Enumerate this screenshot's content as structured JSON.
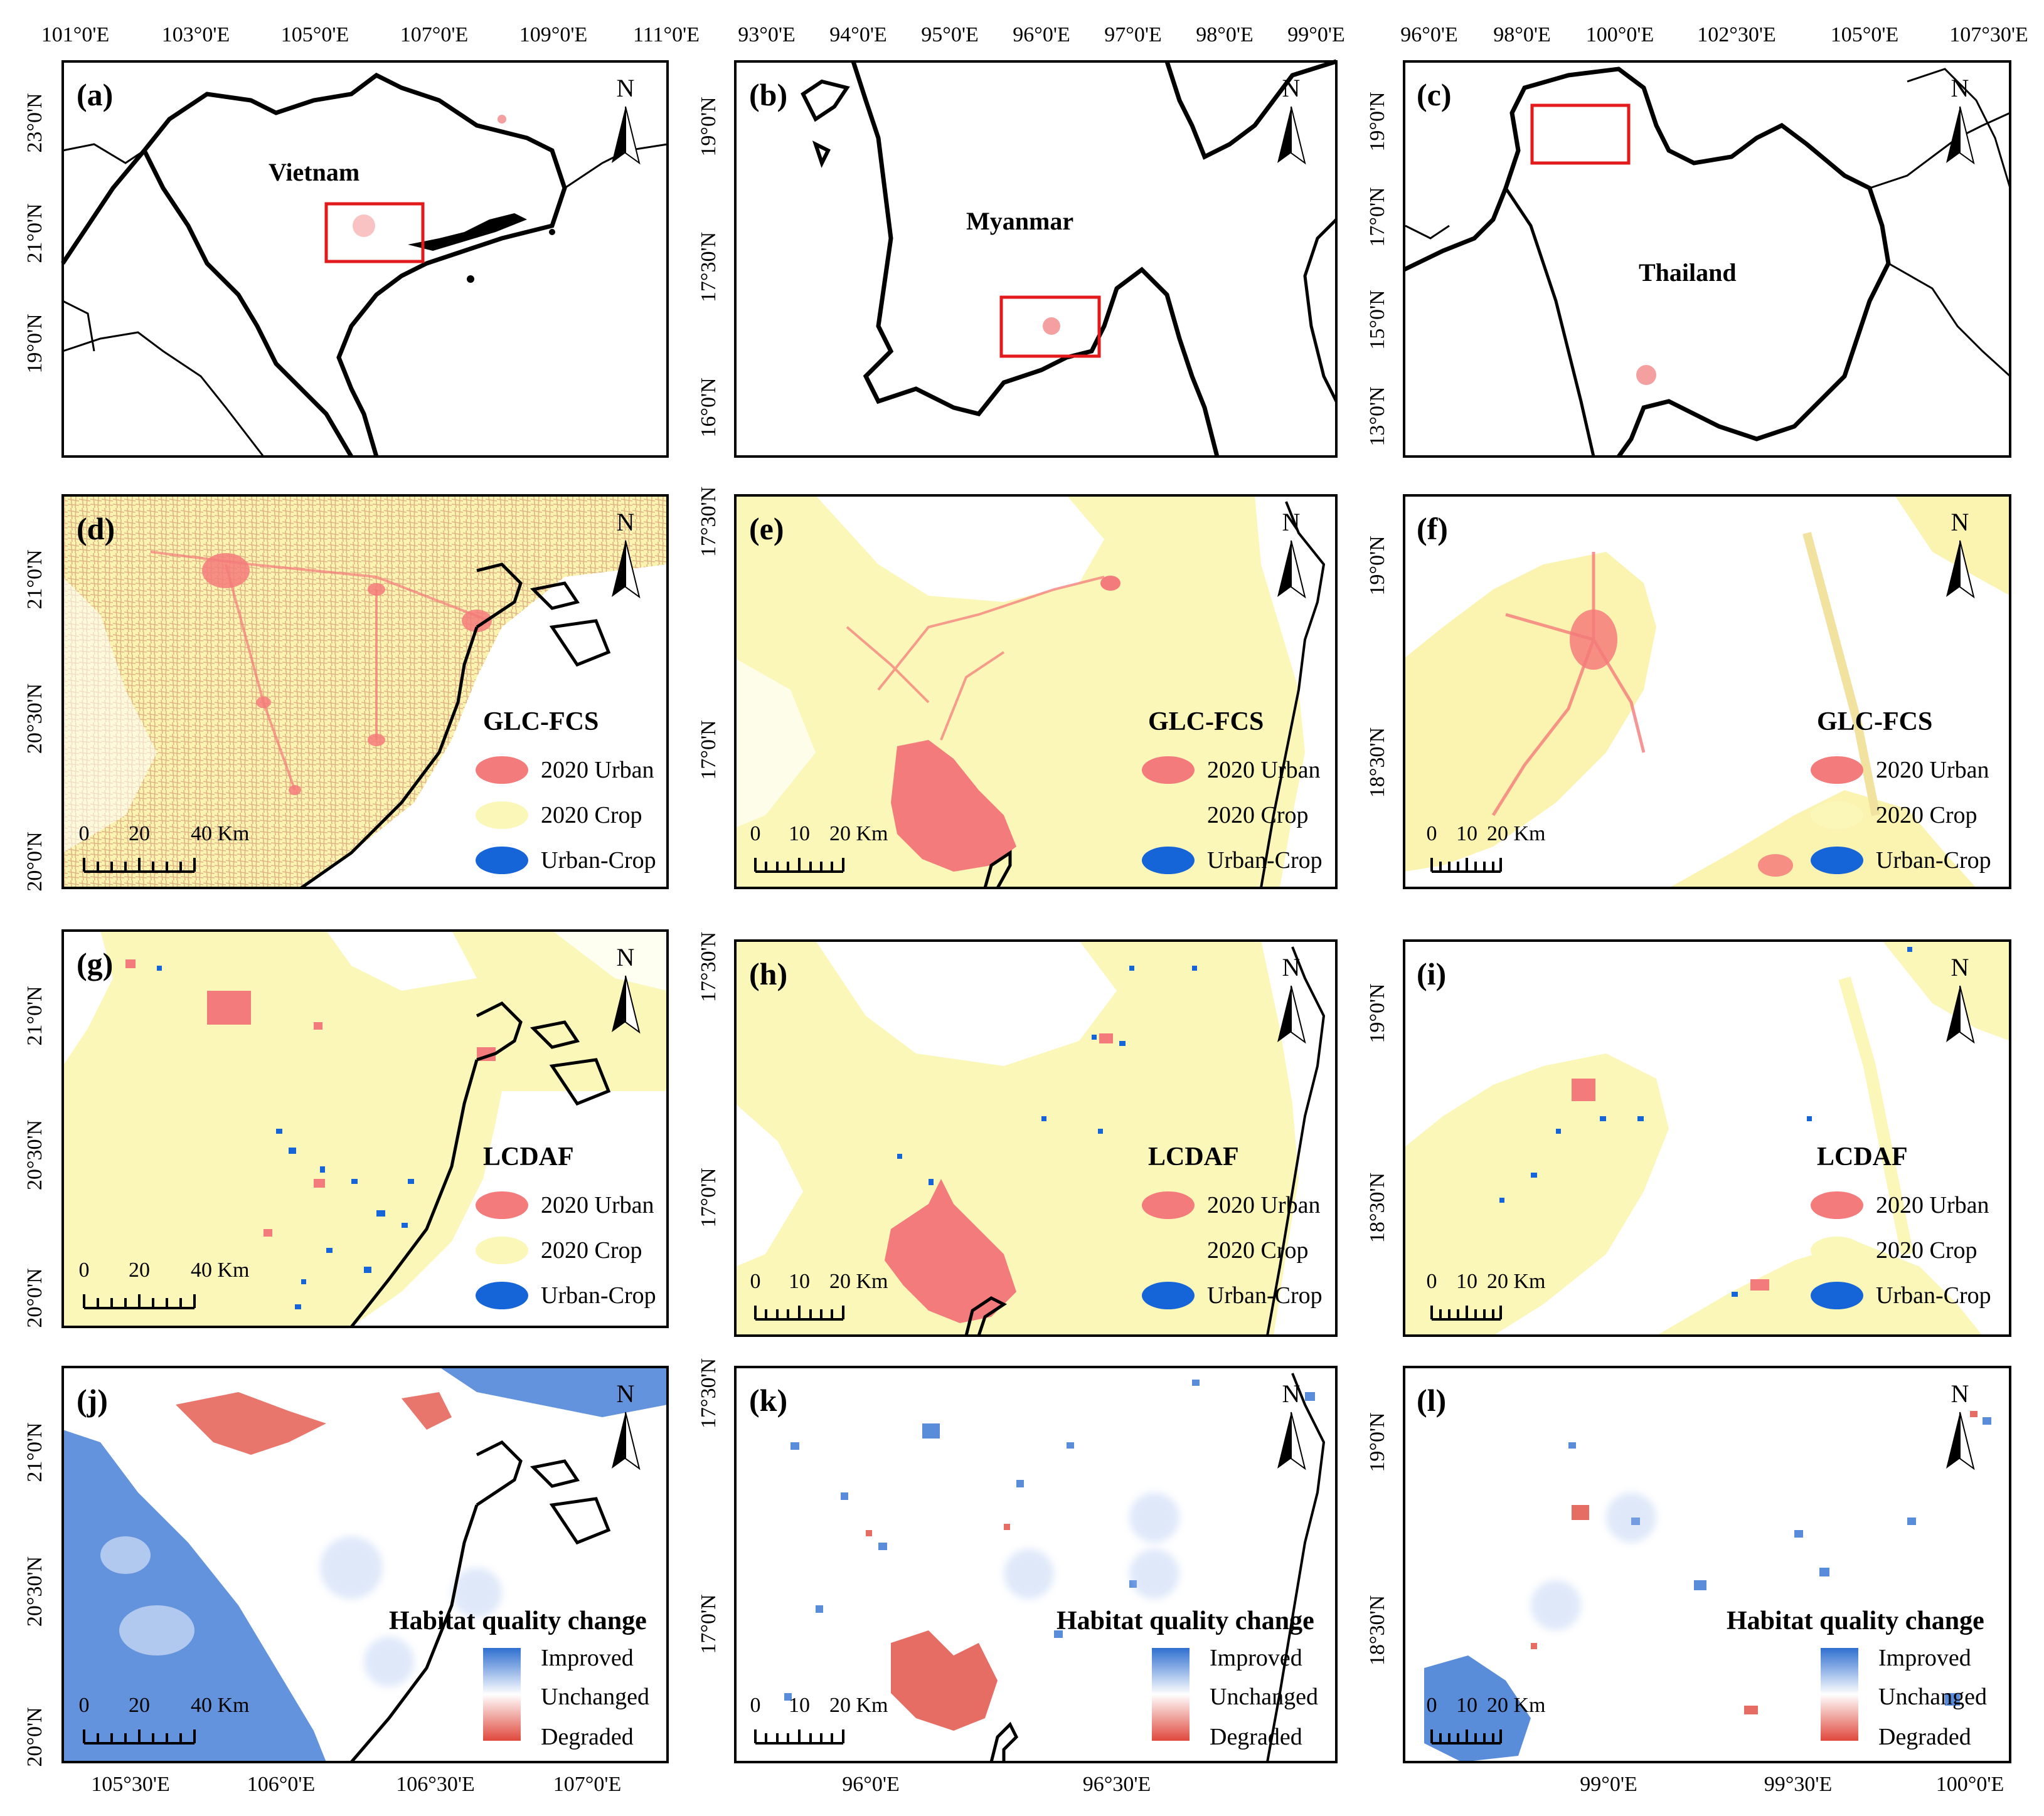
{
  "figure": {
    "panels": [
      {
        "id": "(a)",
        "country": "Vietnam"
      },
      {
        "id": "(b)",
        "country": "Myanmar"
      },
      {
        "id": "(c)",
        "country": "Thailand"
      },
      {
        "id": "(d)",
        "legend_title": "GLC-FCS"
      },
      {
        "id": "(e)",
        "legend_title": "GLC-FCS"
      },
      {
        "id": "(f)",
        "legend_title": "GLC-FCS"
      },
      {
        "id": "(g)",
        "legend_title": "LCDAF"
      },
      {
        "id": "(h)",
        "legend_title": "LCDAF"
      },
      {
        "id": "(i)",
        "legend_title": "LCDAF"
      },
      {
        "id": "(j)",
        "legend_title": "Habitat quality change"
      },
      {
        "id": "(k)",
        "legend_title": "Habitat quality change"
      },
      {
        "id": "(l)",
        "legend_title": "Habitat quality change"
      }
    ],
    "north_label": "N",
    "landcover_legend": [
      "2020 Urban",
      "2020 Crop",
      "Urban-Crop"
    ],
    "habitat_legend": [
      "Improved",
      "Unchanged",
      "Degraded"
    ],
    "scalebars": {
      "col1": [
        "0",
        "20",
        "40 Km"
      ],
      "col2": [
        "0",
        "10",
        "20 Km"
      ],
      "col3": [
        "0",
        "10",
        "20 Km"
      ]
    },
    "top_axis": {
      "col1": [
        "101°0'E",
        "103°0'E",
        "105°0'E",
        "107°0'E",
        "109°0'E",
        "111°0'E"
      ],
      "col2": [
        "93°0'E",
        "94°0'E",
        "95°0'E",
        "96°0'E",
        "97°0'E",
        "98°0'E",
        "99°0'E"
      ],
      "col3": [
        "96°0'E",
        "98°0'E",
        "100°0'E",
        "102°30'E",
        "105°0'E",
        "107°30'E"
      ]
    },
    "bottom_axis": {
      "col1": [
        "105°30'E",
        "106°0'E",
        "106°30'E",
        "107°0'E"
      ],
      "col2": [
        "96°0'E",
        "96°30'E"
      ],
      "col3": [
        "99°0'E",
        "99°30'E",
        "100°0'E"
      ]
    },
    "left_axis": {
      "row1": {
        "col1": [
          "23°0'N",
          "21°0'N",
          "19°0'N"
        ],
        "col2": [
          "19°0'N",
          "17°30'N",
          "16°0'N"
        ],
        "col3": [
          "19°0'N",
          "17°0'N",
          "15°0'N",
          "13°0'N"
        ]
      },
      "row2": {
        "col1": [
          "21°0'N",
          "20°30'N",
          "20°0'N"
        ],
        "col2": [
          "17°30'N",
          "17°0'N"
        ],
        "col3": [
          "19°0'N",
          "18°30'N"
        ]
      },
      "row3": {
        "col1": [
          "21°0'N",
          "20°30'N",
          "20°0'N"
        ],
        "col2": [
          "17°30'N",
          "17°0'N"
        ],
        "col3": [
          "19°0'N",
          "18°30'N"
        ]
      },
      "row4": {
        "col1": [
          "21°0'N",
          "20°30'N",
          "20°0'N"
        ],
        "col2": [
          "17°30'N",
          "17°0'N"
        ],
        "col3": [
          "19°0'N",
          "18°30'N"
        ]
      }
    },
    "colors": {
      "urban": "#f47b7b",
      "crop": "#fbf7b8",
      "urban_crop": "#1565d8",
      "improved": "#2f6fd0",
      "degraded": "#e0483c",
      "inset_box": "#e31a1c"
    }
  }
}
